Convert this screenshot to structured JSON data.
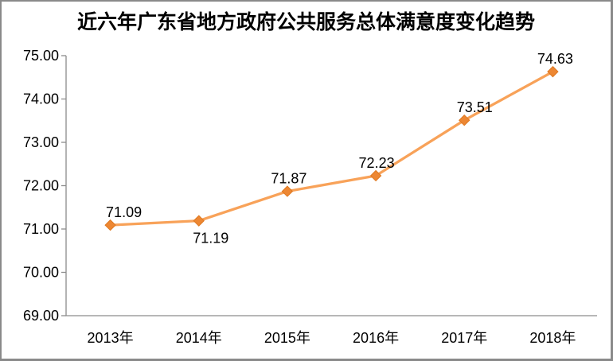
{
  "chart_data": {
    "type": "line",
    "title": "近六年广东省地方政府公共服务总体满意度变化趋势",
    "categories": [
      "2013年",
      "2014年",
      "2015年",
      "2016年",
      "2017年",
      "2018年"
    ],
    "values": [
      71.09,
      71.19,
      71.87,
      72.23,
      73.51,
      74.63
    ],
    "data_labels": [
      "71.09",
      "71.19",
      "71.87",
      "72.23",
      "73.51",
      "74.63"
    ],
    "xlabel": "",
    "ylabel": "",
    "ylim": [
      69,
      75
    ],
    "ytick_step": 1,
    "ytick_labels": [
      "69.00",
      "70.00",
      "71.00",
      "72.00",
      "73.00",
      "74.00",
      "75.00"
    ],
    "grid": false,
    "legend": "none",
    "colors": {
      "line": "#F8A259",
      "marker": "#ED8733",
      "marker_border": "#DE7820",
      "axis": "#8C8C8C",
      "text": "#000000",
      "frame_border": "#8A8A8A",
      "background": "#FFFFFF"
    }
  }
}
